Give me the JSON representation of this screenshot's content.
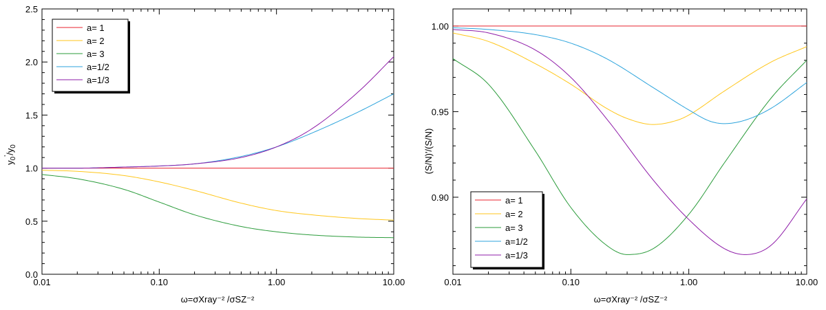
{
  "chart_data": [
    {
      "type": "line",
      "xscale": "log",
      "xlim": [
        0.01,
        10.0
      ],
      "ylim": [
        0.0,
        2.5
      ],
      "xticks": [
        "0.01",
        "0.10",
        "1.00",
        "10.00"
      ],
      "yticks": [
        "0.0",
        "0.5",
        "1.0",
        "1.5",
        "2.0",
        "2.5"
      ],
      "ylabel": "y0'/y0",
      "ylabel_main": "y",
      "ylabel_sup": "0",
      "ylabel_prime_sub": "'",
      "ylabel_sep": "/y",
      "ylabel_sub2": "0",
      "xlabel": "ω=σXray⁻² /σSZ⁻²",
      "legend_position": "top-left",
      "series": [
        {
          "name": "a= 1",
          "color": "#e8232d",
          "x": [
            0.01,
            10.0
          ],
          "y": [
            1.0,
            1.0
          ]
        },
        {
          "name": "a= 2",
          "color": "#ffc61a",
          "x": [
            0.01,
            0.02,
            0.05,
            0.1,
            0.2,
            0.5,
            1.0,
            2.0,
            5.0,
            10.0
          ],
          "y": [
            0.98,
            0.97,
            0.93,
            0.87,
            0.79,
            0.67,
            0.6,
            0.56,
            0.525,
            0.51
          ]
        },
        {
          "name": "a= 3",
          "color": "#2a9b3a",
          "x": [
            0.01,
            0.02,
            0.05,
            0.1,
            0.2,
            0.5,
            1.0,
            2.0,
            5.0,
            10.0
          ],
          "y": [
            0.94,
            0.9,
            0.8,
            0.68,
            0.56,
            0.45,
            0.4,
            0.37,
            0.35,
            0.345
          ]
        },
        {
          "name": "a=1/2",
          "color": "#2ba3dc",
          "x": [
            0.01,
            0.02,
            0.05,
            0.1,
            0.2,
            0.5,
            1.0,
            2.0,
            5.0,
            10.0
          ],
          "y": [
            1.0,
            1.0,
            1.01,
            1.02,
            1.04,
            1.11,
            1.2,
            1.33,
            1.53,
            1.7
          ]
        },
        {
          "name": "a=1/3",
          "color": "#8e1ba8",
          "x": [
            0.01,
            0.02,
            0.05,
            0.1,
            0.2,
            0.5,
            1.0,
            2.0,
            5.0,
            10.0
          ],
          "y": [
            1.0,
            1.0,
            1.01,
            1.02,
            1.04,
            1.1,
            1.2,
            1.37,
            1.72,
            2.05
          ]
        }
      ]
    },
    {
      "type": "line",
      "xscale": "log",
      "xlim": [
        0.01,
        10.0
      ],
      "ylim": [
        0.855,
        1.01
      ],
      "xticks": [
        "0.01",
        "0.10",
        "1.00",
        "10.00"
      ],
      "yticks": [
        "0.90",
        "0.95",
        "1.00"
      ],
      "ylabel": "(S/N)'/(S/N)",
      "xlabel": "ω=σXray⁻² /σSZ⁻²",
      "legend_position": "bottom-left",
      "series": [
        {
          "name": "a= 1",
          "color": "#e8232d",
          "x": [
            0.01,
            10.0
          ],
          "y": [
            1.0,
            1.0
          ]
        },
        {
          "name": "a= 2",
          "color": "#ffc61a",
          "x": [
            0.01,
            0.02,
            0.05,
            0.1,
            0.2,
            0.3,
            0.5,
            0.8,
            1.0,
            2.0,
            5.0,
            10.0
          ],
          "y": [
            0.996,
            0.991,
            0.978,
            0.966,
            0.952,
            0.946,
            0.9425,
            0.945,
            0.948,
            0.962,
            0.979,
            0.988
          ]
        },
        {
          "name": "a= 3",
          "color": "#2a9b3a",
          "x": [
            0.01,
            0.02,
            0.05,
            0.1,
            0.2,
            0.3,
            0.5,
            1.0,
            2.0,
            5.0,
            10.0
          ],
          "y": [
            0.981,
            0.966,
            0.927,
            0.894,
            0.872,
            0.8665,
            0.87,
            0.89,
            0.92,
            0.958,
            0.98
          ]
        },
        {
          "name": "a=1/2",
          "color": "#2ba3dc",
          "x": [
            0.01,
            0.02,
            0.05,
            0.1,
            0.2,
            0.5,
            1.0,
            1.5,
            2.0,
            3.0,
            5.0,
            10.0
          ],
          "y": [
            0.999,
            0.998,
            0.995,
            0.99,
            0.981,
            0.964,
            0.951,
            0.9445,
            0.943,
            0.945,
            0.952,
            0.967
          ]
        },
        {
          "name": "a=1/3",
          "color": "#8e1ba8",
          "x": [
            0.01,
            0.02,
            0.05,
            0.1,
            0.2,
            0.5,
            1.0,
            2.0,
            3.0,
            5.0,
            10.0
          ],
          "y": [
            0.998,
            0.996,
            0.986,
            0.97,
            0.946,
            0.91,
            0.887,
            0.87,
            0.8665,
            0.872,
            0.899
          ]
        }
      ]
    }
  ]
}
